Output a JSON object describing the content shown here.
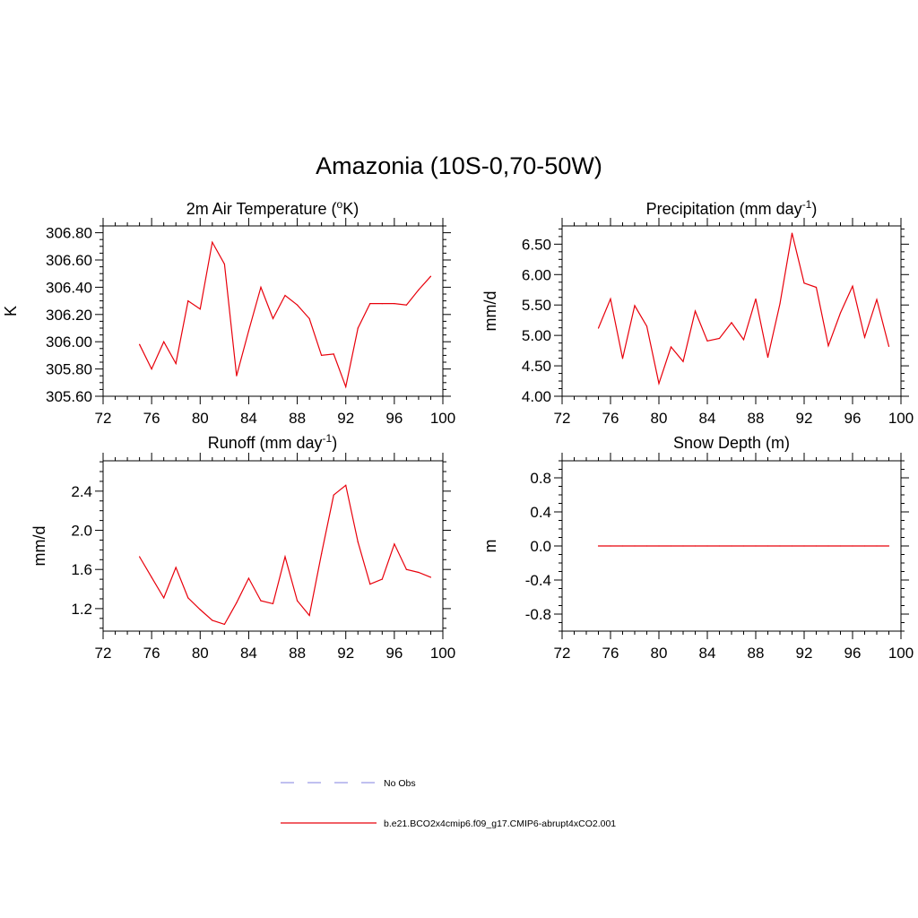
{
  "main_title": "Amazonia (10S-0,70-50W)",
  "colors": {
    "series": "#e8000b",
    "obs": "#9a9ae8",
    "axis": "#000000"
  },
  "chart_data": [
    {
      "id": "temp",
      "type": "line",
      "title": "2m Air Temperature (°K)",
      "title_main": "2m Air Temperature (",
      "title_sup": "o",
      "title_end": "K)",
      "ylabel": "K",
      "xlim": [
        72,
        100
      ],
      "ylim": [
        305.6,
        306.85
      ],
      "xticks": [
        72,
        76,
        80,
        84,
        88,
        92,
        96,
        100
      ],
      "xtick_labels": [
        "72",
        "76",
        "80",
        "84",
        "88",
        "92",
        "96",
        "100"
      ],
      "yticks": [
        305.6,
        305.8,
        306.0,
        306.2,
        306.4,
        306.6,
        306.8
      ],
      "ytick_labels": [
        "305.60",
        "305.80",
        "306.00",
        "306.20",
        "306.40",
        "306.60",
        "306.80"
      ],
      "x": [
        75,
        76,
        77,
        78,
        79,
        80,
        81,
        82,
        83,
        84,
        85,
        86,
        87,
        88,
        89,
        90,
        91,
        92,
        93,
        94,
        95,
        96,
        97,
        98,
        99
      ],
      "values": [
        305.98,
        305.8,
        306.0,
        305.84,
        306.3,
        306.24,
        306.73,
        306.57,
        305.75,
        306.08,
        306.4,
        306.17,
        306.34,
        306.27,
        306.17,
        305.9,
        305.91,
        305.67,
        306.1,
        306.28,
        306.28,
        306.28,
        306.27,
        306.38,
        306.48
      ]
    },
    {
      "id": "precip",
      "type": "line",
      "title": "Precipitation (mm day-1)",
      "title_main": "Precipitation (mm day",
      "title_sup": "-1",
      "title_end": ")",
      "ylabel": "mm/d",
      "xlim": [
        72,
        100
      ],
      "ylim": [
        4.0,
        6.8
      ],
      "xticks": [
        72,
        76,
        80,
        84,
        88,
        92,
        96,
        100
      ],
      "xtick_labels": [
        "72",
        "76",
        "80",
        "84",
        "88",
        "92",
        "96",
        "100"
      ],
      "yticks": [
        4.0,
        4.5,
        5.0,
        5.5,
        6.0,
        6.5
      ],
      "ytick_labels": [
        "4.00",
        "4.50",
        "5.00",
        "5.50",
        "6.00",
        "6.50"
      ],
      "x": [
        75,
        76,
        77,
        78,
        79,
        80,
        81,
        82,
        83,
        84,
        85,
        86,
        87,
        88,
        89,
        90,
        91,
        92,
        93,
        94,
        95,
        96,
        97,
        98,
        99
      ],
      "values": [
        5.12,
        5.6,
        4.62,
        5.49,
        5.15,
        4.21,
        4.81,
        4.57,
        5.4,
        4.91,
        4.95,
        5.21,
        4.93,
        5.6,
        4.64,
        5.52,
        6.68,
        5.86,
        5.79,
        4.83,
        5.37,
        5.81,
        4.97,
        5.59,
        4.82
      ]
    },
    {
      "id": "runoff",
      "type": "line",
      "title": "Runoff (mm day-1)",
      "title_main": "Runoff (mm day",
      "title_sup": "-1",
      "title_end": ")",
      "ylabel": "mm/d",
      "xlim": [
        72,
        100
      ],
      "ylim": [
        0.97,
        2.71
      ],
      "xticks": [
        72,
        76,
        80,
        84,
        88,
        92,
        96,
        100
      ],
      "xtick_labels": [
        "72",
        "76",
        "80",
        "84",
        "88",
        "92",
        "96",
        "100"
      ],
      "yticks": [
        1.2,
        1.6,
        2.0,
        2.4
      ],
      "ytick_labels": [
        "1.2",
        "1.6",
        "2.0",
        "2.4"
      ],
      "x": [
        75,
        76,
        77,
        78,
        79,
        80,
        81,
        82,
        83,
        84,
        85,
        86,
        87,
        88,
        89,
        90,
        91,
        92,
        93,
        94,
        95,
        96,
        97,
        98,
        99
      ],
      "values": [
        1.73,
        1.52,
        1.31,
        1.62,
        1.31,
        1.19,
        1.08,
        1.04,
        1.26,
        1.51,
        1.28,
        1.25,
        1.73,
        1.28,
        1.13,
        1.76,
        2.36,
        2.46,
        1.88,
        1.45,
        1.5,
        1.86,
        1.6,
        1.57,
        1.52
      ]
    },
    {
      "id": "snow",
      "type": "line",
      "title": "Snow Depth (m)",
      "title_main": "Snow Depth (m)",
      "title_sup": "",
      "title_end": "",
      "ylabel": "m",
      "xlim": [
        72,
        100
      ],
      "ylim": [
        -1.0,
        1.0
      ],
      "xticks": [
        72,
        76,
        80,
        84,
        88,
        92,
        96,
        100
      ],
      "xtick_labels": [
        "72",
        "76",
        "80",
        "84",
        "88",
        "92",
        "96",
        "100"
      ],
      "yticks": [
        -0.8,
        -0.4,
        0.0,
        0.4,
        0.8
      ],
      "ytick_labels": [
        "-0.8",
        "-0.4",
        "0.0",
        "0.4",
        "0.8"
      ],
      "x": [
        75,
        76,
        77,
        78,
        79,
        80,
        81,
        82,
        83,
        84,
        85,
        86,
        87,
        88,
        89,
        90,
        91,
        92,
        93,
        94,
        95,
        96,
        97,
        98,
        99
      ],
      "values": [
        0,
        0,
        0,
        0,
        0,
        0,
        0,
        0,
        0,
        0,
        0,
        0,
        0,
        0,
        0,
        0,
        0,
        0,
        0,
        0,
        0,
        0,
        0,
        0,
        0
      ]
    }
  ],
  "legend": [
    {
      "label": "No Obs",
      "style": "dashed",
      "color": "#9a9ae8"
    },
    {
      "label": "b.e21.BCO2x4cmip6.f09_g17.CMIP6-abrupt4xCO2.001",
      "style": "solid",
      "color": "#e8000b"
    }
  ]
}
